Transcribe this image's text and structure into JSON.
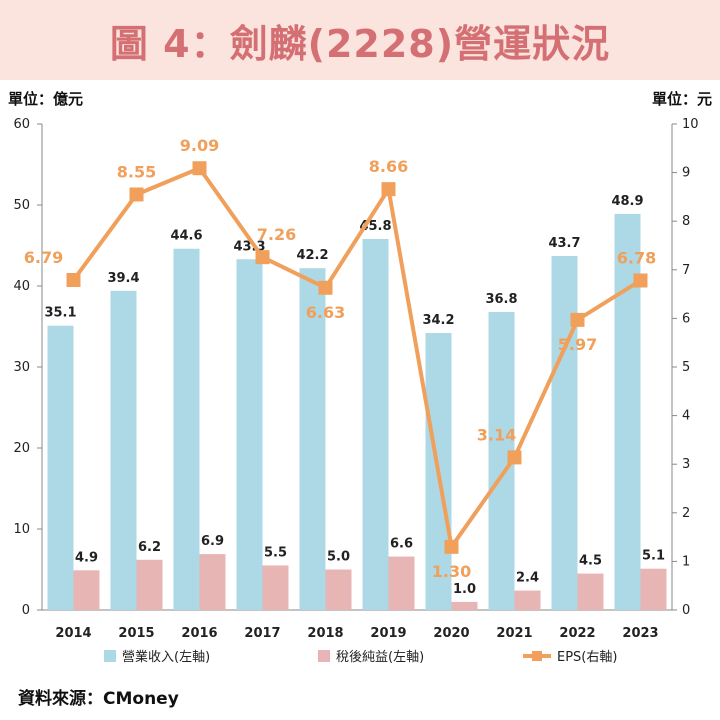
{
  "title": "圖 4：劍麟(2228)營運狀況",
  "unit_left": "單位：億元",
  "unit_right": "單位：元",
  "source": "資料來源：CMoney",
  "colors": {
    "revenue": "#add8e6",
    "net_income": "#e8b5b5",
    "eps": "#f0a05a",
    "title_bg": "#fbe3de",
    "title_text": "#d46f73"
  },
  "chart_data": {
    "type": "bar+line",
    "categories": [
      "2014",
      "2015",
      "2016",
      "2017",
      "2018",
      "2019",
      "2020",
      "2021",
      "2022",
      "2023"
    ],
    "series": [
      {
        "name": "營業收入(左軸)",
        "axis": "left",
        "kind": "bar",
        "values": [
          35.1,
          39.4,
          44.6,
          43.3,
          42.2,
          45.8,
          34.2,
          36.8,
          43.7,
          48.9
        ]
      },
      {
        "name": "稅後純益(左軸)",
        "axis": "left",
        "kind": "bar",
        "values": [
          4.9,
          6.2,
          6.9,
          5.5,
          5.0,
          6.6,
          1.0,
          2.4,
          4.5,
          5.1
        ]
      },
      {
        "name": "EPS(右軸)",
        "axis": "right",
        "kind": "line",
        "values": [
          6.79,
          8.55,
          9.09,
          7.26,
          6.63,
          8.66,
          1.3,
          3.14,
          5.97,
          6.78
        ],
        "labels": [
          "6.79",
          "8.55",
          "9.09",
          "7.26",
          "6.63",
          "8.66",
          "1.30",
          "3.14",
          "5.97",
          "6.78"
        ]
      }
    ],
    "y_left": {
      "min": 0,
      "max": 60,
      "ticks": [
        0,
        10,
        20,
        30,
        40,
        50,
        60
      ]
    },
    "y_right": {
      "min": 0,
      "max": 10,
      "ticks": [
        0,
        1,
        2,
        3,
        4,
        5,
        6,
        7,
        8,
        9,
        10
      ]
    },
    "legend_position": "bottom"
  }
}
